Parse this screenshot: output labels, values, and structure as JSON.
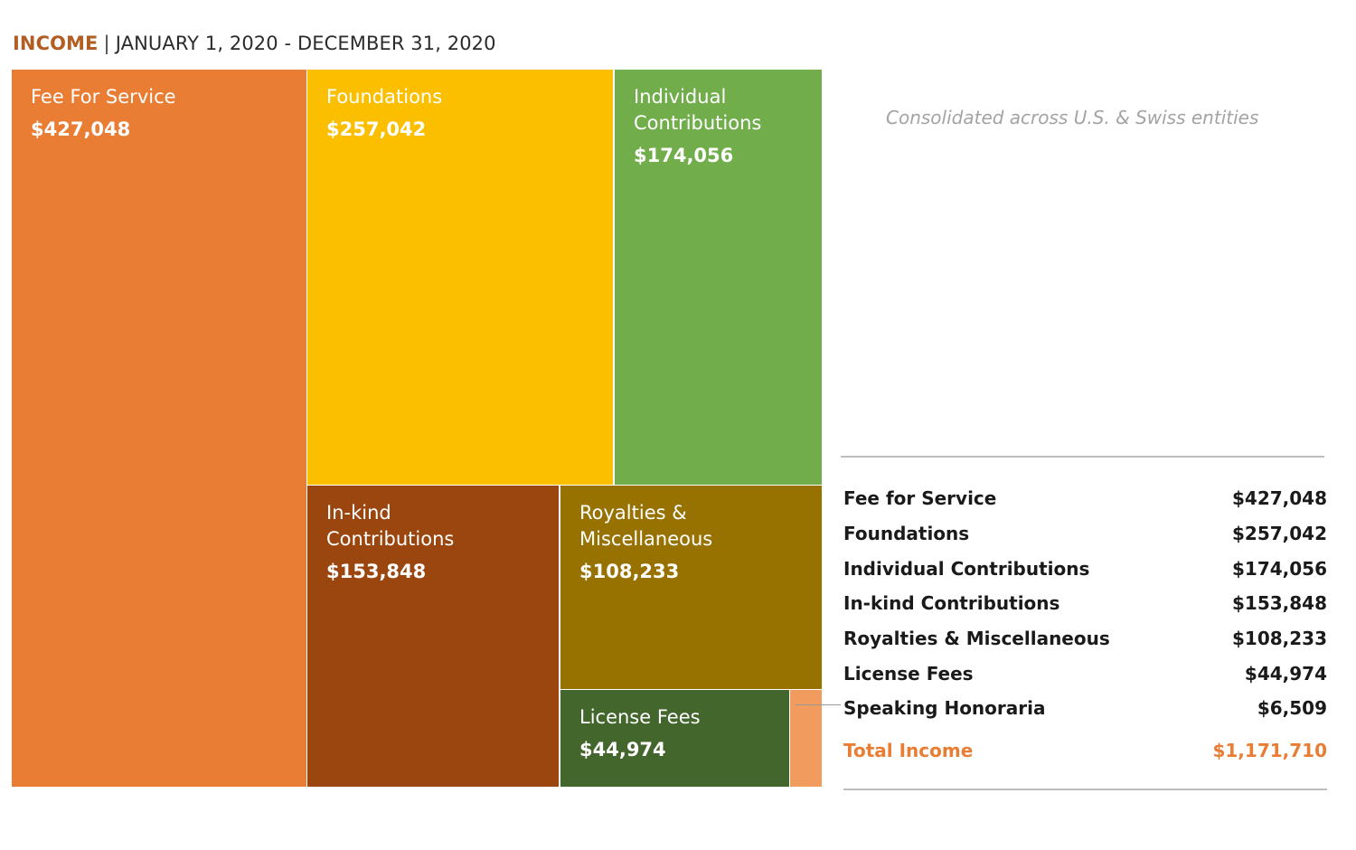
{
  "header": {
    "title": "INCOME",
    "separator": "|",
    "period": "JANUARY 1, 2020 - DECEMBER 31, 2020"
  },
  "note": "Consolidated across U.S. & Swiss entities",
  "table": {
    "rows": [
      {
        "label": "Fee for Service",
        "value": "$427,048"
      },
      {
        "label": "Foundations",
        "value": "$257,042"
      },
      {
        "label": "Individual Contributions",
        "value": "$174,056"
      },
      {
        "label": "In-kind Contributions",
        "value": "$153,848"
      },
      {
        "label": "Royalties & Miscellaneous",
        "value": "$108,233"
      },
      {
        "label": "License Fees",
        "value": "$44,974"
      },
      {
        "label": "Speaking Honoraria",
        "value": "$6,509"
      }
    ],
    "total": {
      "label": "Total Income",
      "value": "$1,171,710"
    }
  },
  "colors": {
    "title": "#b25d22",
    "total": "#ea7d34"
  },
  "chart_data": {
    "type": "treemap",
    "title": "INCOME",
    "subtitle": "JANUARY 1, 2020 - DECEMBER 31, 2020",
    "items": [
      {
        "lines": [
          "Fee For Service"
        ],
        "value": 427048,
        "value_label": "$427,048",
        "color": "#ea7d34"
      },
      {
        "lines": [
          "Foundations"
        ],
        "value": 257042,
        "value_label": "$257,042",
        "color": "#fbbf00"
      },
      {
        "lines": [
          "Individual",
          "Contributions"
        ],
        "value": 174056,
        "value_label": "$174,056",
        "color": "#71ad4b"
      },
      {
        "lines": [
          "In-kind",
          "Contributions"
        ],
        "value": 153848,
        "value_label": "$153,848",
        "color": "#9c460f"
      },
      {
        "lines": [
          "Royalties &",
          "Miscellaneous"
        ],
        "value": 108233,
        "value_label": "$108,233",
        "color": "#987200"
      },
      {
        "lines": [
          "License Fees"
        ],
        "value": 44974,
        "value_label": "$44,974",
        "color": "#43662d"
      },
      {
        "lines": [],
        "value": 6509,
        "value_label": "",
        "color": "#f19b5e"
      }
    ]
  }
}
